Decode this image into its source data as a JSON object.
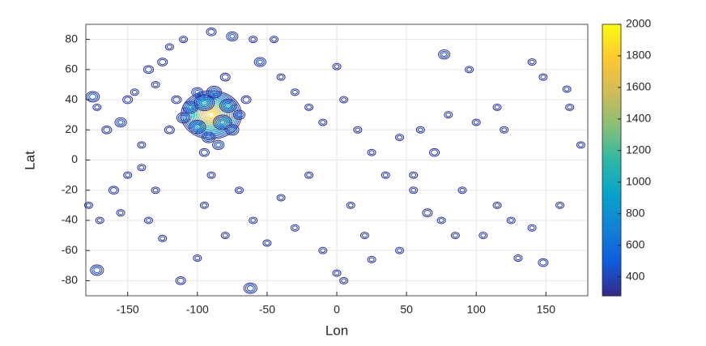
{
  "chart_data": {
    "type": "contour",
    "xlabel": "Lon",
    "ylabel": "Lat",
    "xlim": [
      -180,
      180
    ],
    "ylim": [
      -90,
      90
    ],
    "xticks": [
      -150,
      -100,
      -50,
      0,
      50,
      100,
      150
    ],
    "yticks": [
      -80,
      -60,
      -40,
      -20,
      0,
      20,
      40,
      60,
      80
    ],
    "grid": true,
    "clim": [
      280,
      2000
    ],
    "cticks": [
      400,
      600,
      800,
      1000,
      1200,
      1400,
      1600,
      1800,
      2000
    ],
    "colormap": [
      "#352a87",
      "#0f5cdd",
      "#1481d6",
      "#06a4ca",
      "#2eb7a4",
      "#87bf77",
      "#d1bb59",
      "#fec832",
      "#f9fb0e"
    ],
    "levels": [
      300,
      400,
      500,
      600,
      700,
      800,
      900,
      1000,
      1100,
      1200,
      1300,
      1400,
      1500,
      1600,
      1700,
      1800,
      1900
    ],
    "x": [
      -90,
      -95,
      -82,
      -100,
      -78,
      -105,
      -88,
      -92,
      -75,
      -110,
      -70,
      -85,
      -100,
      -115,
      -65,
      -120,
      -80,
      -95,
      -175,
      -172,
      -165,
      -155,
      -150,
      -145,
      -140,
      -135,
      -130,
      -125,
      -120,
      -110,
      -90,
      -75,
      -60,
      -45,
      -55,
      -40,
      -30,
      -20,
      -10,
      0,
      5,
      15,
      25,
      45,
      55,
      60,
      70,
      77,
      80,
      95,
      100,
      115,
      120,
      140,
      148,
      165,
      167,
      175,
      -178,
      -170,
      -172,
      -160,
      -155,
      -150,
      -140,
      -135,
      -130,
      -125,
      -112,
      -100,
      -95,
      -90,
      -80,
      -70,
      -60,
      -62,
      -50,
      -40,
      -30,
      -20,
      -10,
      0,
      5,
      10,
      20,
      25,
      35,
      45,
      55,
      65,
      75,
      85,
      90,
      105,
      115,
      125,
      130,
      140,
      148,
      160
    ],
    "y": [
      30,
      38,
      25,
      22,
      36,
      35,
      45,
      15,
      20,
      28,
      30,
      10,
      45,
      40,
      40,
      20,
      55,
      5,
      42,
      35,
      20,
      25,
      40,
      45,
      10,
      60,
      50,
      65,
      75,
      80,
      85,
      82,
      80,
      80,
      65,
      55,
      45,
      35,
      25,
      62,
      40,
      20,
      5,
      15,
      -10,
      20,
      5,
      70,
      30,
      60,
      25,
      35,
      20,
      65,
      55,
      47,
      35,
      10,
      -30,
      -40,
      -73,
      -20,
      -35,
      -10,
      -5,
      -40,
      -20,
      -52,
      -80,
      -65,
      -30,
      -10,
      -50,
      -20,
      -40,
      -85,
      -55,
      -25,
      -45,
      -10,
      -60,
      -75,
      -80,
      -30,
      -50,
      -66,
      -10,
      -60,
      -20,
      -35,
      -40,
      -50,
      -20,
      -50,
      -30,
      -40,
      -65,
      -45,
      -68,
      -30
    ],
    "values": [
      2000,
      800,
      750,
      700,
      700,
      650,
      650,
      600,
      600,
      600,
      550,
      550,
      550,
      500,
      500,
      500,
      500,
      500,
      600,
      450,
      500,
      550,
      500,
      450,
      450,
      500,
      450,
      500,
      450,
      450,
      500,
      550,
      450,
      450,
      550,
      450,
      450,
      450,
      450,
      450,
      450,
      450,
      450,
      450,
      450,
      450,
      500,
      550,
      450,
      450,
      450,
      450,
      450,
      450,
      450,
      450,
      450,
      450,
      450,
      450,
      600,
      500,
      450,
      450,
      450,
      450,
      450,
      450,
      500,
      450,
      450,
      450,
      450,
      450,
      450,
      600,
      450,
      450,
      450,
      450,
      450,
      450,
      450,
      450,
      450,
      450,
      450,
      450,
      450,
      500,
      450,
      450,
      450,
      450,
      450,
      450,
      450,
      450,
      500,
      450
    ]
  }
}
